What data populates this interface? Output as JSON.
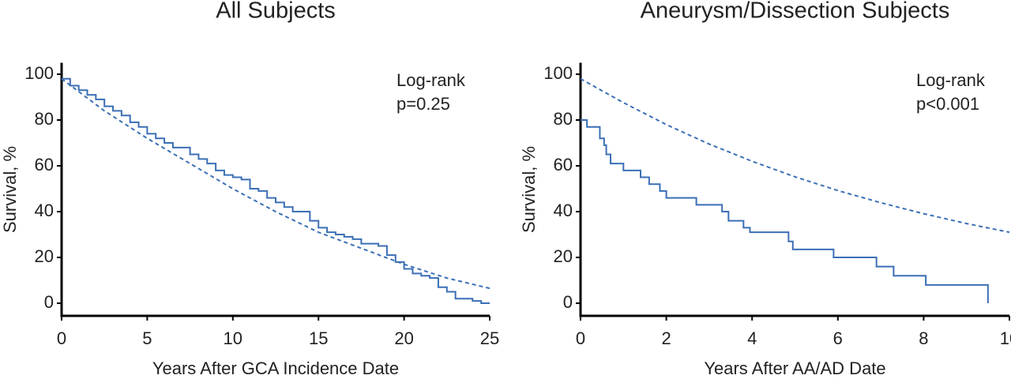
{
  "chart_data": [
    {
      "type": "line",
      "title": "All Subjects",
      "x_label": "Years After GCA Incidence Date",
      "y_label": "Survival, %",
      "annotation": [
        "Log-rank",
        "p=0.25"
      ],
      "xlim": [
        0,
        25
      ],
      "xticks": [
        0,
        5,
        10,
        15,
        20,
        25
      ],
      "ylim": [
        -5.5,
        105
      ],
      "yticks": [
        0,
        20,
        40,
        60,
        80,
        100
      ],
      "series": [
        {
          "color": "#3b6fb6",
          "step": true,
          "dash": false,
          "x": [
            0,
            0.5,
            1,
            1.5,
            2,
            2.5,
            3,
            3.5,
            4,
            4.5,
            5,
            5.5,
            6,
            6.5,
            7,
            7.5,
            8,
            8.5,
            9,
            9.5,
            10,
            10.5,
            11,
            11.5,
            12,
            12.5,
            13,
            13.5,
            14,
            14.5,
            15,
            15.5,
            16,
            16.5,
            17,
            17.5,
            18,
            18.5,
            19,
            19.5,
            20,
            20.5,
            21,
            21.5,
            22,
            22.5,
            23,
            24,
            24.5,
            25
          ],
          "values": [
            98,
            95,
            93,
            91,
            89,
            86,
            84,
            82,
            79,
            77,
            74,
            72,
            70,
            68,
            68,
            65,
            63,
            61,
            58,
            56,
            55,
            54,
            50,
            49,
            46,
            44,
            42,
            40,
            40,
            36,
            33,
            31,
            30,
            29,
            28,
            26,
            26,
            25,
            21,
            18,
            15,
            13,
            12,
            11,
            7,
            5,
            2,
            1,
            0,
            0
          ]
        },
        {
          "color": "#3b6fb6",
          "step": false,
          "dash": true,
          "x": [
            0,
            2.5,
            5,
            7.5,
            10,
            12.5,
            15,
            17.5,
            20,
            22.5,
            25
          ],
          "values": [
            98,
            84,
            72,
            61,
            50,
            40,
            31,
            24,
            17,
            11,
            6.5
          ]
        }
      ]
    },
    {
      "type": "line",
      "title": "Aneurysm/Dissection Subjects",
      "x_label": "Years After AA/AD Date",
      "y_label": "Survival, %",
      "annotation": [
        "Log-rank",
        "p<0.001"
      ],
      "xlim": [
        0,
        10
      ],
      "xticks": [
        0,
        2,
        4,
        6,
        8,
        10
      ],
      "ylim": [
        -5.5,
        105
      ],
      "yticks": [
        0,
        20,
        40,
        60,
        80,
        100
      ],
      "series": [
        {
          "color": "#3b6fb6",
          "step": true,
          "dash": false,
          "x": [
            0,
            0.15,
            0.45,
            0.55,
            0.6,
            0.7,
            1.0,
            1.4,
            1.6,
            1.85,
            2.0,
            2.7,
            3.3,
            3.45,
            3.8,
            3.95,
            4.85,
            4.95,
            5.9,
            6.9,
            7.3,
            8.05,
            9.5,
            9.5
          ],
          "values": [
            80,
            77,
            72,
            69,
            65,
            61,
            58,
            55,
            52,
            49,
            46,
            43,
            40,
            36,
            33,
            31,
            27,
            23.5,
            20,
            16,
            12,
            8,
            8,
            0
          ]
        },
        {
          "color": "#3b6fb6",
          "step": false,
          "dash": true,
          "x": [
            0,
            1,
            2,
            3,
            4,
            5,
            6,
            7,
            8,
            9,
            10
          ],
          "values": [
            98,
            87.6,
            78,
            69.5,
            62,
            55.2,
            49.2,
            43.9,
            39.1,
            34.8,
            31
          ]
        }
      ]
    }
  ]
}
